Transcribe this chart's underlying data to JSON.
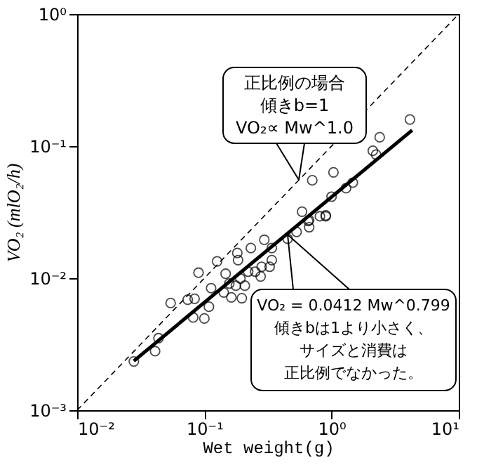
{
  "chart_data": {
    "type": "scatter",
    "xlabel": "Wet weight(g)",
    "ylabel": "VO₂ (mlO₂/h)",
    "log": "xy",
    "xlim": [
      0.01,
      10
    ],
    "ylim": [
      0.001,
      1
    ],
    "xticks": [
      {
        "value": 0.01,
        "label": "10⁻²"
      },
      {
        "value": 0.1,
        "label": "10⁻¹"
      },
      {
        "value": 1,
        "label": "10⁰"
      },
      {
        "value": 10,
        "label": "10¹"
      }
    ],
    "yticks": [
      {
        "value": 0.001,
        "label": "10⁻³"
      },
      {
        "value": 0.01,
        "label": "10⁻²"
      },
      {
        "value": 0.1,
        "label": "10⁻¹"
      },
      {
        "value": 1,
        "label": "10⁰"
      }
    ],
    "grid": false,
    "series": [
      {
        "marker": "circle",
        "color": "#000000",
        "x": [
          0.0279,
          0.041,
          0.0436,
          0.0543,
          0.074,
          0.0838,
          0.0817,
          0.1,
          0.1086,
          0.09,
          0.126,
          0.1815,
          0.184,
          0.232,
          0.296,
          0.339,
          0.147,
          0.113,
          0.142,
          0.163,
          0.197,
          0.177,
          0.208,
          0.192,
          0.221,
          0.251,
          0.277,
          0.282,
          0.326,
          0.339,
          0.157,
          0.451,
          0.531,
          0.667,
          0.667,
          0.9,
          0.586,
          0.81,
          0.9,
          0.655,
          0.705,
          1.035,
          1.0,
          1.3,
          1.47,
          2.11,
          2.24,
          2.39,
          4.13
        ],
        "values": [
          0.00234,
          0.0028,
          0.00351,
          0.00648,
          0.00687,
          0.00698,
          0.00504,
          0.00495,
          0.00608,
          0.011,
          0.0134,
          0.0155,
          0.0137,
          0.0169,
          0.0195,
          0.0169,
          0.0108,
          0.0084,
          0.0078,
          0.00715,
          0.00705,
          0.00877,
          0.00877,
          0.00993,
          0.0112,
          0.0112,
          0.0103,
          0.0122,
          0.0122,
          0.0137,
          0.0091,
          0.0199,
          0.0224,
          0.0243,
          0.0275,
          0.0294,
          0.0319,
          0.0294,
          0.0299,
          0.0271,
          0.0551,
          0.0633,
          0.0414,
          0.048,
          0.0529,
          0.0922,
          0.0863,
          0.1167,
          0.159
        ]
      },
      {
        "type": "line",
        "line_style": "solid",
        "color": "#000000",
        "x": [
          0.0279,
          4.3
        ],
        "values": [
          0.00236,
          0.132
        ]
      },
      {
        "type": "line",
        "line_style": "dashed",
        "color": "#000000",
        "x": [
          0.01,
          10
        ],
        "values": [
          0.001,
          1
        ]
      }
    ],
    "annotations": [
      "正比例の場合",
      "傾きb=1",
      "VO₂∝ Mw^1.0",
      "VO₂ = 0.0412 Mw^0.799",
      "傾きbは1より小さく、",
      "サイズと消費は",
      "正比例でなかった。"
    ]
  }
}
